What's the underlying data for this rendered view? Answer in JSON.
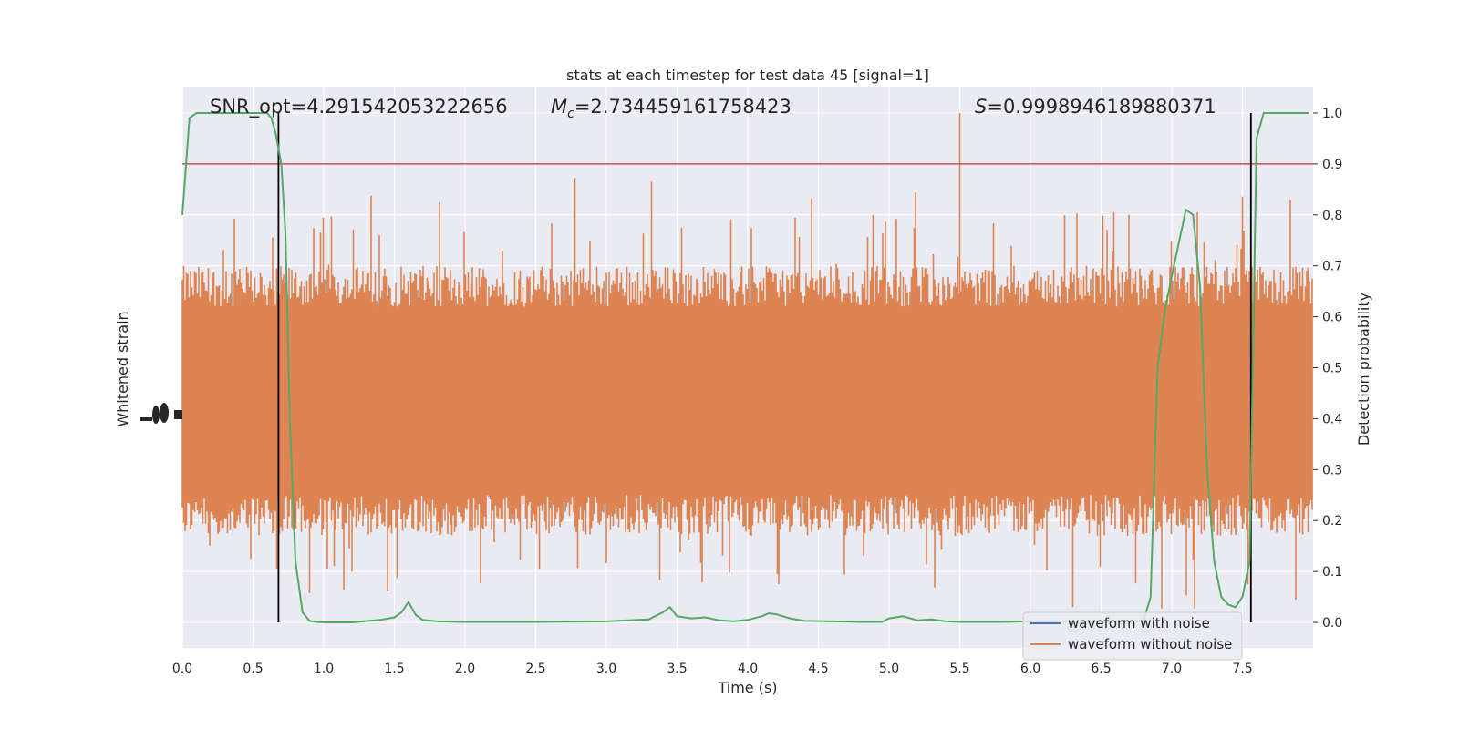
{
  "chart_data": {
    "type": "line",
    "title": "stats at each timestep for test data 45 [signal=1]",
    "xlabel": "Time (s)",
    "ylabel_left": "Whitened strain",
    "ylabel_right": "Detection probability",
    "xlim": [
      0,
      8.0
    ],
    "ylim_right": [
      -0.05,
      1.05
    ],
    "x_ticks": [
      "0.0",
      "0.5",
      "1.0",
      "1.5",
      "2.0",
      "2.5",
      "3.0",
      "3.5",
      "4.0",
      "4.5",
      "5.0",
      "5.5",
      "6.0",
      "6.5",
      "7.0",
      "7.5"
    ],
    "y_ticks_right": [
      "0.0",
      "0.1",
      "0.2",
      "0.3",
      "0.4",
      "0.5",
      "0.6",
      "0.7",
      "0.8",
      "0.9",
      "1.0"
    ],
    "grid": true,
    "annotations": {
      "snr": "SNR_opt=4.291542053222656",
      "mc_symbol": "M",
      "mc_sub": "c",
      "mc_value": "=2.734459161758423",
      "s_symbol": "S",
      "s_value": "=0.9998946189880371"
    },
    "threshold": 0.9,
    "vlines_x": [
      0.68,
      7.56
    ],
    "legend": {
      "position": "lower-right",
      "entries": [
        {
          "label": "waveform with noise",
          "color": "#4c72b0"
        },
        {
          "label": "waveform without noise",
          "color": "#dd8452"
        }
      ]
    },
    "series": [
      {
        "name": "waveform without noise",
        "color": "#dd8452",
        "band_right_units": {
          "typical_low": 0.25,
          "typical_high": 0.62,
          "peak_low": 0.0,
          "peak_high": 1.0
        }
      },
      {
        "name": "detection probability",
        "color": "#55a868",
        "x": [
          0.0,
          0.05,
          0.1,
          0.15,
          0.2,
          0.3,
          0.4,
          0.5,
          0.55,
          0.6,
          0.63,
          0.66,
          0.7,
          0.73,
          0.76,
          0.8,
          0.85,
          0.9,
          0.95,
          1.0,
          1.2,
          1.4,
          1.5,
          1.55,
          1.6,
          1.65,
          1.7,
          1.8,
          2.0,
          2.5,
          3.0,
          3.3,
          3.4,
          3.45,
          3.5,
          3.6,
          3.7,
          3.8,
          3.9,
          4.0,
          4.1,
          4.15,
          4.2,
          4.3,
          4.4,
          4.6,
          4.8,
          4.95,
          5.0,
          5.1,
          5.2,
          5.3,
          5.4,
          5.5,
          5.8,
          6.0,
          6.5,
          6.8,
          6.85,
          6.9,
          6.95,
          7.0,
          7.1,
          7.15,
          7.2,
          7.25,
          7.3,
          7.35,
          7.4,
          7.45,
          7.5,
          7.55,
          7.6,
          7.65,
          7.7,
          7.8,
          7.97
        ],
        "y": [
          0.8,
          0.99,
          1.0,
          1.0,
          1.0,
          1.0,
          1.0,
          1.0,
          1.0,
          1.0,
          0.99,
          0.96,
          0.9,
          0.76,
          0.4,
          0.12,
          0.02,
          0.003,
          0.001,
          0.0,
          0.0,
          0.005,
          0.01,
          0.02,
          0.04,
          0.015,
          0.005,
          0.002,
          0.001,
          0.001,
          0.002,
          0.006,
          0.02,
          0.03,
          0.012,
          0.008,
          0.01,
          0.004,
          0.002,
          0.005,
          0.012,
          0.018,
          0.016,
          0.008,
          0.003,
          0.002,
          0.001,
          0.001,
          0.008,
          0.012,
          0.004,
          0.006,
          0.002,
          0.001,
          0.001,
          0.002,
          0.001,
          0.003,
          0.05,
          0.5,
          0.61,
          0.68,
          0.81,
          0.8,
          0.66,
          0.3,
          0.12,
          0.05,
          0.035,
          0.03,
          0.05,
          0.12,
          0.95,
          1.0,
          1.0,
          1.0,
          1.0
        ]
      }
    ]
  }
}
